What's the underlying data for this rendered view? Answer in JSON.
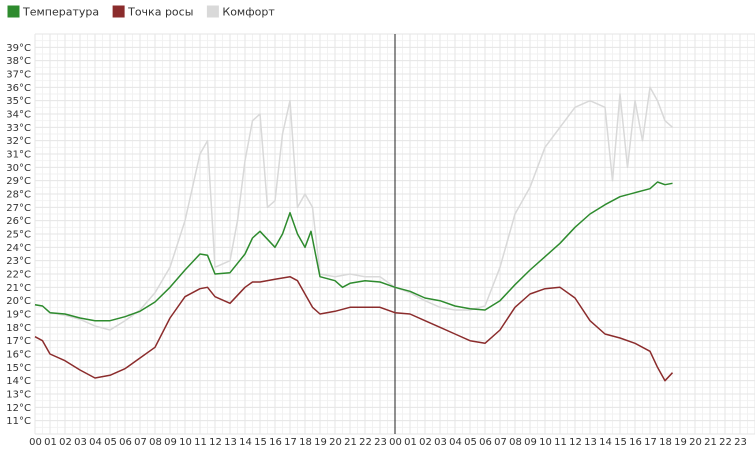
{
  "chart_data": {
    "type": "line",
    "legend_position": "top-left",
    "grid": true,
    "ylim": [
      10,
      40
    ],
    "y_ticks": [
      "11°C",
      "12°C",
      "13°C",
      "14°C",
      "15°C",
      "16°C",
      "17°C",
      "18°C",
      "19°C",
      "20°C",
      "21°C",
      "22°C",
      "23°C",
      "24°C",
      "25°C",
      "26°C",
      "27°C",
      "28°C",
      "29°C",
      "30°C",
      "31°C",
      "32°C",
      "33°C",
      "34°C",
      "35°C",
      "36°C",
      "37°C",
      "38°C",
      "39°C"
    ],
    "x_ticks": [
      "00",
      "01",
      "02",
      "03",
      "04",
      "05",
      "06",
      "07",
      "08",
      "09",
      "10",
      "11",
      "12",
      "13",
      "14",
      "15",
      "16",
      "17",
      "18",
      "19",
      "20",
      "21",
      "22",
      "23",
      "00",
      "01",
      "02",
      "03",
      "04",
      "05",
      "06",
      "07",
      "08",
      "09",
      "10",
      "11",
      "12",
      "13",
      "14",
      "15",
      "16",
      "17",
      "18",
      "19",
      "20",
      "21",
      "22",
      "23"
    ],
    "x_unit": "hours over two days",
    "day_divider_hour": 24,
    "series": [
      {
        "name": "Температура",
        "color": "#2e8b2e",
        "points": [
          [
            0,
            19.7
          ],
          [
            0.5,
            19.6
          ],
          [
            1,
            19.1
          ],
          [
            2,
            19.0
          ],
          [
            3,
            18.7
          ],
          [
            4,
            18.5
          ],
          [
            5,
            18.5
          ],
          [
            6,
            18.8
          ],
          [
            7,
            19.2
          ],
          [
            8,
            19.9
          ],
          [
            9,
            21.0
          ],
          [
            10,
            22.3
          ],
          [
            11,
            23.5
          ],
          [
            11.5,
            23.4
          ],
          [
            12,
            22.0
          ],
          [
            13,
            22.1
          ],
          [
            14,
            23.5
          ],
          [
            14.5,
            24.7
          ],
          [
            15,
            25.2
          ],
          [
            16,
            24.0
          ],
          [
            16.5,
            25.0
          ],
          [
            17,
            26.6
          ],
          [
            17.5,
            25.0
          ],
          [
            18,
            24.0
          ],
          [
            18.4,
            25.2
          ],
          [
            19,
            21.8
          ],
          [
            20,
            21.5
          ],
          [
            20.5,
            21.0
          ],
          [
            21,
            21.3
          ],
          [
            22,
            21.5
          ],
          [
            23,
            21.4
          ],
          [
            24,
            21.0
          ],
          [
            25,
            20.7
          ],
          [
            26,
            20.2
          ],
          [
            27,
            20.0
          ],
          [
            28,
            19.6
          ],
          [
            29,
            19.4
          ],
          [
            30,
            19.3
          ],
          [
            31,
            20.0
          ],
          [
            32,
            21.2
          ],
          [
            33,
            22.3
          ],
          [
            34,
            23.3
          ],
          [
            35,
            24.3
          ],
          [
            36,
            25.5
          ],
          [
            37,
            26.5
          ],
          [
            38,
            27.2
          ],
          [
            39,
            27.8
          ],
          [
            40,
            28.1
          ],
          [
            41,
            28.4
          ],
          [
            41.5,
            28.9
          ],
          [
            42,
            28.7
          ],
          [
            42.5,
            28.8
          ]
        ]
      },
      {
        "name": "Точка росы",
        "color": "#8b2c2c",
        "points": [
          [
            0,
            17.3
          ],
          [
            0.5,
            17.0
          ],
          [
            1,
            16.0
          ],
          [
            2,
            15.5
          ],
          [
            3,
            14.8
          ],
          [
            4,
            14.2
          ],
          [
            5,
            14.4
          ],
          [
            6,
            14.9
          ],
          [
            7,
            15.7
          ],
          [
            8,
            16.5
          ],
          [
            9,
            18.7
          ],
          [
            10,
            20.3
          ],
          [
            11,
            20.9
          ],
          [
            11.5,
            21.0
          ],
          [
            12,
            20.3
          ],
          [
            13,
            19.8
          ],
          [
            14,
            21.0
          ],
          [
            14.5,
            21.4
          ],
          [
            15,
            21.4
          ],
          [
            16,
            21.6
          ],
          [
            17,
            21.8
          ],
          [
            17.5,
            21.5
          ],
          [
            18,
            20.5
          ],
          [
            18.5,
            19.5
          ],
          [
            19,
            19.0
          ],
          [
            20,
            19.2
          ],
          [
            21,
            19.5
          ],
          [
            22,
            19.5
          ],
          [
            23,
            19.5
          ],
          [
            24,
            19.1
          ],
          [
            25,
            19.0
          ],
          [
            26,
            18.5
          ],
          [
            27,
            18.0
          ],
          [
            28,
            17.5
          ],
          [
            29,
            17.0
          ],
          [
            30,
            16.8
          ],
          [
            31,
            17.8
          ],
          [
            32,
            19.5
          ],
          [
            33,
            20.5
          ],
          [
            34,
            20.9
          ],
          [
            35,
            21.0
          ],
          [
            36,
            20.2
          ],
          [
            37,
            18.5
          ],
          [
            38,
            17.5
          ],
          [
            39,
            17.2
          ],
          [
            40,
            16.8
          ],
          [
            41,
            16.2
          ],
          [
            41.5,
            15.0
          ],
          [
            42,
            14.0
          ],
          [
            42.5,
            14.6
          ]
        ]
      },
      {
        "name": "Комфорт",
        "color": "#d9d9d9",
        "points": [
          [
            0,
            19.7
          ],
          [
            0.5,
            19.6
          ],
          [
            1,
            19.1
          ],
          [
            2,
            18.9
          ],
          [
            3,
            18.6
          ],
          [
            4,
            18.1
          ],
          [
            5,
            17.8
          ],
          [
            6,
            18.5
          ],
          [
            7,
            19.3
          ],
          [
            8,
            20.6
          ],
          [
            9,
            22.5
          ],
          [
            10,
            26.0
          ],
          [
            10.5,
            28.5
          ],
          [
            11,
            31.0
          ],
          [
            11.5,
            32.0
          ],
          [
            12,
            22.5
          ],
          [
            13,
            23.0
          ],
          [
            13.5,
            26.0
          ],
          [
            14,
            30.5
          ],
          [
            14.5,
            33.5
          ],
          [
            15,
            34.0
          ],
          [
            15.5,
            27.0
          ],
          [
            16,
            27.5
          ],
          [
            16.5,
            32.5
          ],
          [
            17,
            35.0
          ],
          [
            17.5,
            27.0
          ],
          [
            18,
            28.0
          ],
          [
            18.5,
            27.0
          ],
          [
            19,
            22.0
          ],
          [
            20,
            21.8
          ],
          [
            21,
            22.0
          ],
          [
            22,
            21.8
          ],
          [
            23,
            21.8
          ],
          [
            24,
            21.0
          ],
          [
            25,
            20.6
          ],
          [
            26,
            20.0
          ],
          [
            27,
            19.5
          ],
          [
            28,
            19.3
          ],
          [
            29,
            19.3
          ],
          [
            30,
            19.6
          ],
          [
            31,
            22.5
          ],
          [
            32,
            26.5
          ],
          [
            33,
            28.5
          ],
          [
            34,
            31.5
          ],
          [
            35,
            33.0
          ],
          [
            36,
            34.5
          ],
          [
            37,
            35.0
          ],
          [
            38,
            34.5
          ],
          [
            38.5,
            29.0
          ],
          [
            39,
            35.5
          ],
          [
            39.5,
            30.0
          ],
          [
            40,
            35.0
          ],
          [
            40.5,
            32.0
          ],
          [
            41,
            36.0
          ],
          [
            41.5,
            35.0
          ],
          [
            42,
            33.5
          ],
          [
            42.5,
            33.0
          ]
        ]
      }
    ]
  }
}
